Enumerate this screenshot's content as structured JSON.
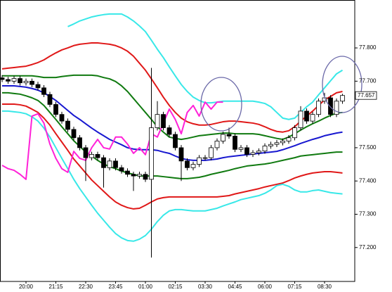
{
  "chart_data": {
    "type": "candlestick",
    "categories": [
      null,
      null,
      null,
      null,
      "20:00",
      null,
      null,
      null,
      null,
      "21:15",
      null,
      null,
      null,
      null,
      "22:30",
      null,
      null,
      null,
      null,
      "23:45",
      null,
      null,
      null,
      null,
      "01:00",
      null,
      null,
      null,
      null,
      "02:15",
      null,
      null,
      null,
      null,
      "03:30",
      null,
      null,
      null,
      null,
      "04:45",
      null,
      null,
      null,
      null,
      "06:00",
      null,
      null,
      null,
      null,
      "07:15",
      null,
      null,
      null,
      null,
      "08:30",
      null,
      null,
      null
    ],
    "open": [
      77.71,
      77.705,
      77.7,
      77.708,
      77.695,
      77.7,
      77.69,
      77.68,
      77.66,
      77.63,
      77.6,
      77.58,
      77.555,
      77.53,
      77.5,
      77.47,
      77.48,
      77.47,
      77.44,
      77.46,
      77.44,
      77.43,
      77.42,
      77.415,
      77.42,
      77.405,
      77.56,
      77.6,
      77.56,
      77.54,
      77.5,
      77.46,
      77.44,
      77.45,
      77.47,
      77.47,
      77.5,
      77.52,
      77.54,
      77.535,
      77.495,
      77.5,
      77.48,
      77.485,
      77.49,
      77.505,
      77.51,
      77.515,
      77.52,
      77.53,
      77.56,
      77.61,
      77.58,
      77.6,
      77.64,
      77.65,
      77.6,
      77.64
    ],
    "high": [
      77.718,
      77.713,
      77.716,
      77.716,
      77.708,
      77.708,
      77.698,
      77.688,
      77.668,
      77.638,
      77.608,
      77.588,
      77.563,
      77.538,
      77.508,
      77.488,
      77.488,
      77.478,
      77.468,
      77.468,
      77.448,
      77.438,
      77.428,
      77.428,
      77.428,
      77.74,
      77.64,
      77.608,
      77.568,
      77.548,
      77.508,
      77.468,
      77.458,
      77.478,
      77.478,
      77.508,
      77.528,
      77.548,
      77.56,
      77.543,
      77.508,
      77.508,
      77.493,
      77.498,
      77.513,
      77.518,
      77.523,
      77.528,
      77.538,
      77.568,
      77.625,
      77.618,
      77.608,
      77.648,
      77.665,
      77.658,
      77.648,
      77.662
    ],
    "low": [
      77.697,
      77.692,
      77.692,
      77.687,
      77.687,
      77.682,
      77.672,
      77.652,
      77.622,
      77.592,
      77.572,
      77.547,
      77.522,
      77.492,
      77.4,
      77.462,
      77.462,
      77.38,
      77.432,
      77.432,
      77.422,
      77.412,
      77.37,
      77.407,
      77.397,
      77.17,
      77.552,
      77.552,
      77.532,
      77.492,
      77.4,
      77.432,
      77.432,
      77.442,
      77.462,
      77.462,
      77.492,
      77.512,
      77.527,
      77.487,
      77.487,
      77.472,
      77.472,
      77.477,
      77.482,
      77.497,
      77.502,
      77.507,
      77.512,
      77.522,
      77.552,
      77.572,
      77.572,
      77.592,
      77.632,
      77.592,
      77.592,
      77.632
    ],
    "close": [
      77.705,
      77.7,
      77.708,
      77.695,
      77.7,
      77.69,
      77.68,
      77.66,
      77.63,
      77.6,
      77.58,
      77.555,
      77.53,
      77.5,
      77.47,
      77.48,
      77.47,
      77.44,
      77.46,
      77.44,
      77.43,
      77.42,
      77.415,
      77.42,
      77.405,
      77.56,
      77.6,
      77.56,
      77.54,
      77.5,
      77.46,
      77.44,
      77.45,
      77.47,
      77.47,
      77.5,
      77.52,
      77.54,
      77.535,
      77.495,
      77.5,
      77.48,
      77.485,
      77.49,
      77.505,
      77.51,
      77.515,
      77.52,
      77.53,
      77.56,
      77.61,
      77.58,
      77.6,
      77.64,
      77.65,
      77.6,
      77.64,
      77.657
    ],
    "series": [
      {
        "color": "#38e8e8",
        "values": [
          null,
          null,
          null,
          null,
          null,
          null,
          null,
          null,
          null,
          null,
          null,
          77.864,
          77.872,
          77.881,
          77.887,
          77.893,
          77.897,
          77.9,
          77.902,
          77.902,
          77.902,
          77.893,
          77.881,
          77.866,
          77.849,
          77.823,
          77.796,
          77.771,
          77.743,
          77.716,
          77.69,
          77.669,
          77.652,
          77.642,
          77.635,
          77.635,
          77.637,
          77.64,
          77.64,
          77.64,
          77.64,
          77.64,
          77.64,
          77.637,
          77.633,
          77.623,
          77.606,
          77.589,
          77.585,
          77.589,
          77.606,
          77.623,
          77.637,
          77.659,
          77.68,
          77.701,
          77.722,
          77.733
        ]
      },
      {
        "color": "#e01818",
        "values": [
          77.737,
          77.739,
          77.741,
          77.743,
          77.745,
          77.75,
          77.756,
          77.764,
          77.775,
          77.785,
          77.794,
          77.8,
          77.807,
          77.811,
          77.813,
          77.815,
          77.815,
          77.813,
          77.811,
          77.807,
          77.8,
          77.79,
          77.775,
          77.754,
          77.733,
          77.707,
          77.68,
          77.652,
          77.627,
          77.606,
          77.589,
          77.578,
          77.572,
          77.568,
          77.568,
          77.57,
          77.574,
          77.578,
          77.58,
          77.58,
          77.578,
          77.576,
          77.574,
          77.57,
          77.563,
          77.555,
          77.549,
          77.547,
          77.551,
          77.563,
          77.58,
          77.595,
          77.61,
          77.627,
          77.644,
          77.654,
          77.665,
          77.669
        ]
      },
      {
        "color": "#107a10",
        "values": [
          77.716,
          77.716,
          77.716,
          77.716,
          77.716,
          77.716,
          77.714,
          77.711,
          77.711,
          77.711,
          77.714,
          77.716,
          77.718,
          77.718,
          77.718,
          77.718,
          77.716,
          77.711,
          77.707,
          77.699,
          77.686,
          77.669,
          77.648,
          77.627,
          77.606,
          77.585,
          77.563,
          77.547,
          77.532,
          77.528,
          77.525,
          77.528,
          77.532,
          77.536,
          77.538,
          77.54,
          77.542,
          77.544,
          77.544,
          77.542,
          77.542,
          77.542,
          77.542,
          77.54,
          77.536,
          77.532,
          77.528,
          77.525,
          77.532,
          77.542,
          77.553,
          77.563,
          77.572,
          77.58,
          77.589,
          77.597,
          77.604,
          77.606
        ]
      },
      {
        "color": "#1818d0",
        "values": [
          77.686,
          77.686,
          77.686,
          77.684,
          77.682,
          77.678,
          77.673,
          77.665,
          77.654,
          77.642,
          77.627,
          77.612,
          77.597,
          77.585,
          77.572,
          77.559,
          77.547,
          77.536,
          77.525,
          77.517,
          77.509,
          77.5,
          77.496,
          77.494,
          77.494,
          77.494,
          77.492,
          77.487,
          77.483,
          77.475,
          77.468,
          77.464,
          77.462,
          77.462,
          77.462,
          77.464,
          77.466,
          77.47,
          77.473,
          77.475,
          77.477,
          77.479,
          77.481,
          77.483,
          77.485,
          77.487,
          77.489,
          77.494,
          77.5,
          77.506,
          77.513,
          77.519,
          77.525,
          77.53,
          77.536,
          77.54,
          77.544,
          77.547
        ]
      },
      {
        "color": "#107a10",
        "values": [
          77.665,
          77.665,
          77.663,
          77.661,
          77.656,
          77.65,
          77.642,
          77.627,
          77.606,
          77.585,
          77.563,
          77.542,
          77.521,
          77.504,
          77.487,
          77.475,
          77.462,
          77.451,
          77.443,
          77.437,
          77.43,
          77.424,
          77.42,
          77.415,
          77.415,
          77.415,
          77.415,
          77.413,
          77.411,
          77.409,
          77.407,
          77.407,
          77.409,
          77.411,
          77.415,
          77.42,
          77.424,
          77.428,
          77.432,
          77.437,
          77.441,
          77.445,
          77.447,
          77.449,
          77.451,
          77.454,
          77.458,
          77.462,
          77.466,
          77.47,
          77.475,
          77.477,
          77.479,
          77.481,
          77.483,
          77.485,
          77.487,
          77.487
        ]
      },
      {
        "color": "#e01818",
        "values": [
          77.631,
          77.631,
          77.631,
          77.629,
          77.625,
          77.616,
          77.606,
          77.589,
          77.568,
          77.542,
          77.517,
          77.492,
          77.466,
          77.445,
          77.424,
          77.403,
          77.386,
          77.369,
          77.352,
          77.337,
          77.327,
          77.32,
          77.316,
          77.318,
          77.327,
          77.337,
          77.346,
          77.35,
          77.352,
          77.352,
          77.352,
          77.352,
          77.352,
          77.352,
          77.352,
          77.352,
          77.352,
          77.354,
          77.356,
          77.361,
          77.365,
          77.369,
          77.373,
          77.377,
          77.382,
          77.386,
          77.39,
          77.394,
          77.401,
          77.409,
          77.415,
          77.42,
          77.424,
          77.426,
          77.428,
          77.428,
          77.426,
          77.424
        ]
      },
      {
        "color": "#38e8e8",
        "values": [
          77.61,
          77.61,
          77.608,
          77.606,
          77.602,
          77.593,
          77.58,
          77.559,
          77.532,
          77.5,
          77.468,
          77.437,
          77.405,
          77.377,
          77.352,
          77.327,
          77.303,
          77.282,
          77.261,
          77.242,
          77.229,
          77.221,
          77.219,
          77.225,
          77.236,
          77.255,
          77.278,
          77.297,
          77.31,
          77.314,
          77.314,
          77.312,
          77.31,
          77.31,
          77.31,
          77.314,
          77.318,
          77.325,
          77.331,
          77.337,
          77.344,
          77.348,
          77.352,
          77.356,
          77.363,
          77.373,
          77.386,
          77.39,
          77.384,
          77.373,
          77.367,
          77.367,
          77.371,
          77.373,
          77.369,
          77.365,
          77.363,
          77.361
        ]
      },
      {
        "color": "#ff22d8",
        "values": [
          77.447,
          77.437,
          77.432,
          77.42,
          77.405,
          77.595,
          77.602,
          77.574,
          77.511,
          77.468,
          77.437,
          77.426,
          77.489,
          77.468,
          77.462,
          77.5,
          77.525,
          77.5,
          77.496,
          77.532,
          77.532,
          77.511,
          77.483,
          77.5,
          77.479,
          77.542,
          77.532,
          77.574,
          77.616,
          77.585,
          77.542,
          77.606,
          77.627,
          77.595,
          77.637,
          77.616,
          77.637,
          77.637,
          null,
          null,
          null,
          null,
          null,
          null,
          null,
          null,
          null,
          null,
          null,
          null,
          null,
          null,
          null,
          null,
          null,
          null,
          null,
          null
        ]
      }
    ],
    "ylim": [
      77.098,
      77.944
    ],
    "yticks": [
      {
        "value": 77.2,
        "label": "77.200"
      },
      {
        "value": 77.3,
        "label": "77.300"
      },
      {
        "value": 77.4,
        "label": "77.400"
      },
      {
        "value": 77.5,
        "label": "77.500"
      },
      {
        "value": 77.7,
        "label": "77.700"
      },
      {
        "value": 77.8,
        "label": "77.800"
      }
    ],
    "last_price": {
      "value": 77.657,
      "label": "77.657"
    },
    "up_color": "#ffffff",
    "down_color": "#000000"
  }
}
